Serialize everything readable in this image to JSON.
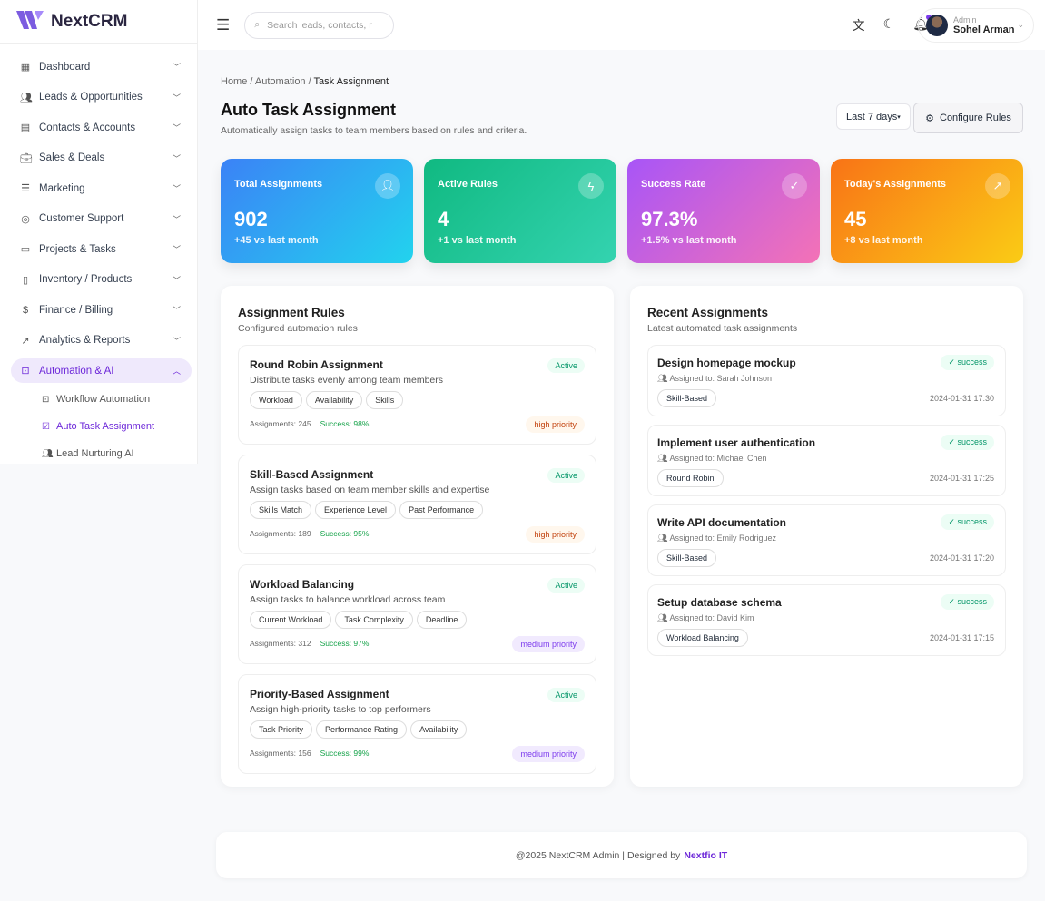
{
  "app": {
    "name": "NextCRM"
  },
  "sidebar": {
    "items": [
      {
        "label": "Dashboard",
        "icon": "grid-icon"
      },
      {
        "label": "Leads & Opportunities",
        "icon": "users-icon"
      },
      {
        "label": "Contacts & Accounts",
        "icon": "building-icon"
      },
      {
        "label": "Sales & Deals",
        "icon": "briefcase-icon"
      },
      {
        "label": "Marketing",
        "icon": "chart-icon"
      },
      {
        "label": "Customer Support",
        "icon": "lifebuoy-icon"
      },
      {
        "label": "Projects & Tasks",
        "icon": "folder-icon"
      },
      {
        "label": "Inventory / Products",
        "icon": "clipboard-icon"
      },
      {
        "label": "Finance / Billing",
        "icon": "dollar-icon"
      },
      {
        "label": "Analytics & Reports",
        "icon": "trend-icon"
      },
      {
        "label": "Automation & AI",
        "icon": "bot-icon"
      }
    ],
    "subitems": [
      {
        "label": "Workflow Automation"
      },
      {
        "label": "Auto Task Assignment"
      },
      {
        "label": "Lead Nurturing AI"
      }
    ]
  },
  "header": {
    "search_placeholder": "Search leads, contacts, r",
    "user_role": "Admin",
    "user_name": "Sohel Arman"
  },
  "breadcrumb": {
    "home": "Home",
    "section": "Automation",
    "current": "Task Assignment"
  },
  "page": {
    "title": "Auto Task Assignment",
    "subtitle": "Automatically assign tasks to team members based on rules and criteria.",
    "range": "Last 7 days",
    "configure": "Configure Rules"
  },
  "stats": [
    {
      "label": "Total Assignments",
      "value": "902",
      "change": "+45 vs last month",
      "color": "#3b82f6"
    },
    {
      "label": "Active Rules",
      "value": "4",
      "change": "+1 vs last month",
      "color": "#10b981"
    },
    {
      "label": "Success Rate",
      "value": "97.3%",
      "change": "+1.5% vs last month",
      "color": "#a855f7"
    },
    {
      "label": "Today's Assignments",
      "value": "45",
      "change": "+8 vs last month",
      "color": "#f97316"
    }
  ],
  "rules_panel": {
    "title": "Assignment Rules",
    "subtitle": "Configured automation rules",
    "rules": [
      {
        "name": "Round Robin Assignment",
        "desc": "Distribute tasks evenly among team members",
        "status": "Active",
        "tags": [
          "Workload",
          "Availability",
          "Skills"
        ],
        "assignments": "Assignments: 245",
        "success": "Success: 98%",
        "priority": "high priority"
      },
      {
        "name": "Skill-Based Assignment",
        "desc": "Assign tasks based on team member skills and expertise",
        "status": "Active",
        "tags": [
          "Skills Match",
          "Experience Level",
          "Past Performance"
        ],
        "assignments": "Assignments: 189",
        "success": "Success: 95%",
        "priority": "high priority"
      },
      {
        "name": "Workload Balancing",
        "desc": "Assign tasks to balance workload across team",
        "status": "Active",
        "tags": [
          "Current Workload",
          "Task Complexity",
          "Deadline"
        ],
        "assignments": "Assignments: 312",
        "success": "Success: 97%",
        "priority": "medium priority"
      },
      {
        "name": "Priority-Based Assignment",
        "desc": "Assign high-priority tasks to top performers",
        "status": "Active",
        "tags": [
          "Task Priority",
          "Performance Rating",
          "Availability"
        ],
        "assignments": "Assignments: 156",
        "success": "Success: 99%",
        "priority": "medium priority"
      }
    ]
  },
  "recent_panel": {
    "title": "Recent Assignments",
    "subtitle": "Latest automated task assignments",
    "items": [
      {
        "task": "Design homepage mockup",
        "assigned": "Assigned to: Sarah Johnson",
        "rule": "Skill-Based",
        "time": "2024-01-31 17:30",
        "status": "success"
      },
      {
        "task": "Implement user authentication",
        "assigned": "Assigned to: Michael Chen",
        "rule": "Round Robin",
        "time": "2024-01-31 17:25",
        "status": "success"
      },
      {
        "task": "Write API documentation",
        "assigned": "Assigned to: Emily Rodriguez",
        "rule": "Skill-Based",
        "time": "2024-01-31 17:20",
        "status": "success"
      },
      {
        "task": "Setup database schema",
        "assigned": "Assigned to: David Kim",
        "rule": "Workload Balancing",
        "time": "2024-01-31 17:15",
        "status": "success"
      }
    ]
  },
  "footer": {
    "text": "@2025 NextCRM Admin | Designed by",
    "brand": "Nextfio IT"
  }
}
